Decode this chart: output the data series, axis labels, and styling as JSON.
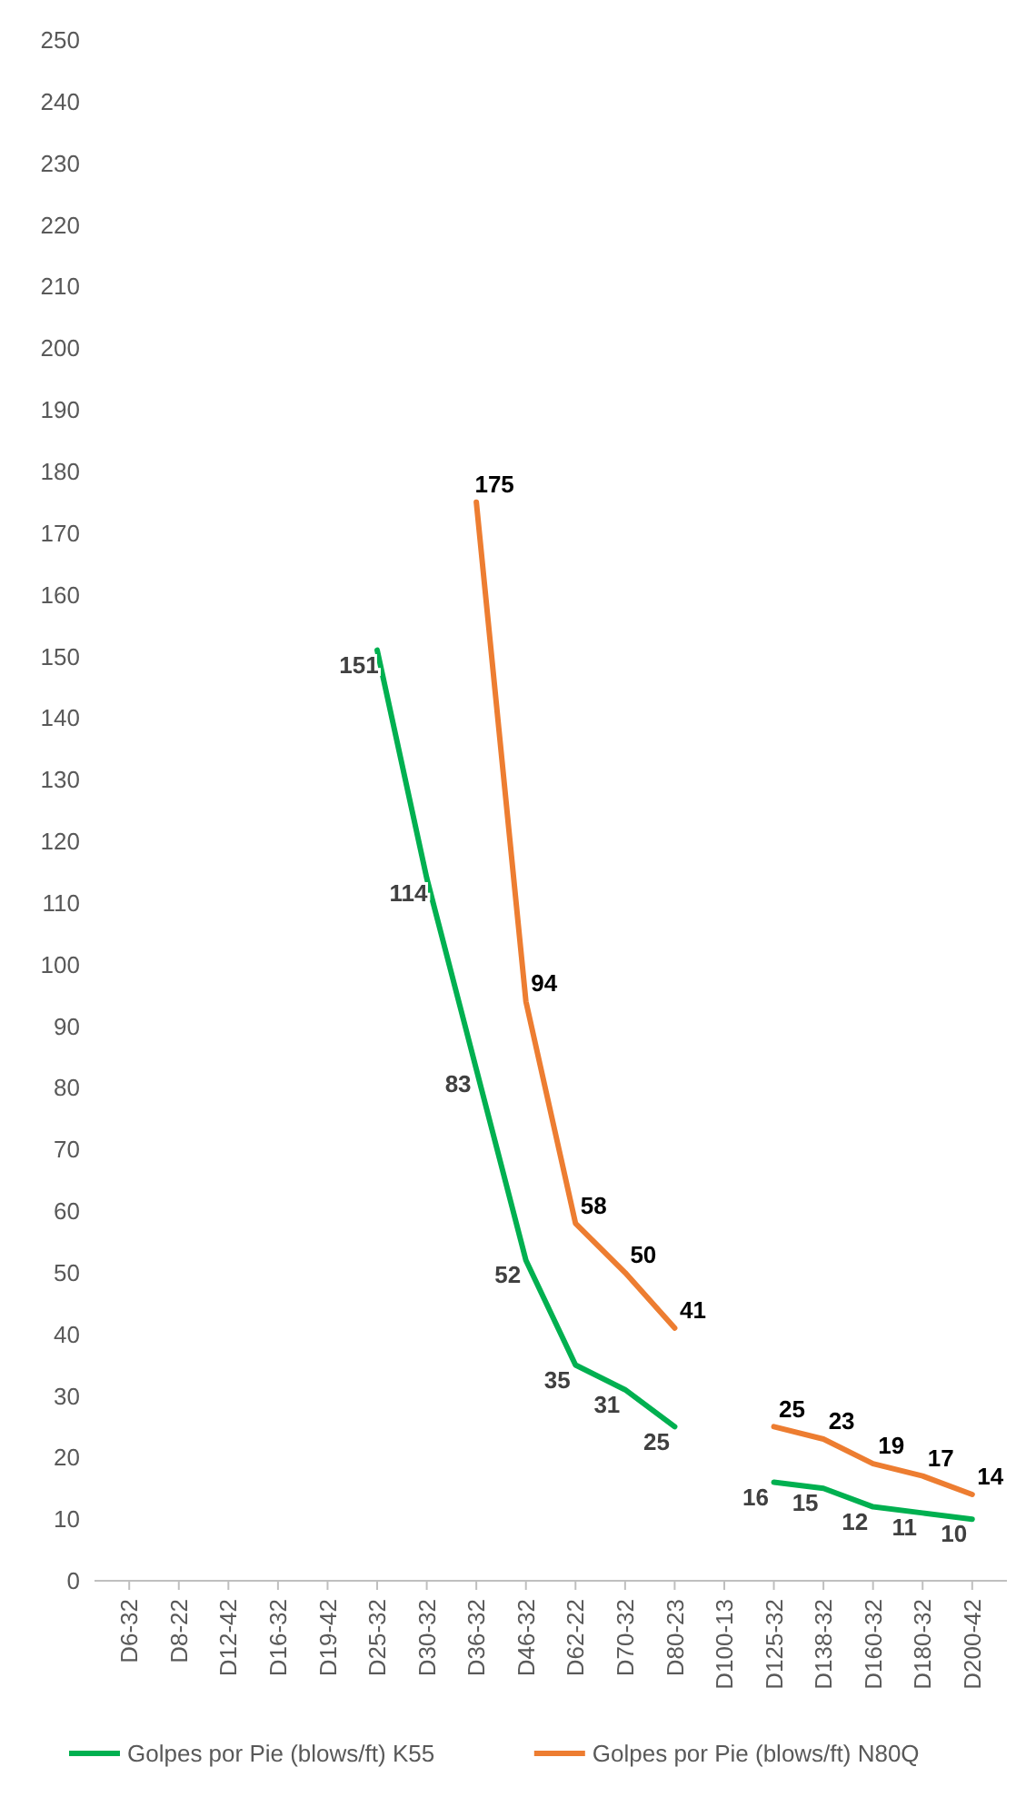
{
  "chart_data": {
    "type": "line",
    "categories": [
      "D6-32",
      "D8-22",
      "D12-42",
      "D16-32",
      "D19-42",
      "D25-32",
      "D30-32",
      "D36-32",
      "D46-32",
      "D62-22",
      "D70-32",
      "D80-23",
      "D100-13",
      "D125-32",
      "D138-32",
      "D160-32",
      "D180-32",
      "D200-42"
    ],
    "series": [
      {
        "name": "Golpes por Pie (blows/ft) K55",
        "color": "#00b050",
        "values": [
          null,
          null,
          null,
          null,
          null,
          151,
          114,
          83,
          52,
          35,
          31,
          25,
          null,
          16,
          15,
          12,
          11,
          10
        ]
      },
      {
        "name": "Golpes por Pie (blows/ft) N80Q",
        "color": "#ed7d31",
        "values": [
          null,
          null,
          null,
          null,
          null,
          null,
          null,
          175,
          94,
          58,
          50,
          41,
          null,
          25,
          23,
          19,
          17,
          14
        ]
      }
    ],
    "ylim": [
      0,
      250
    ],
    "yticks": [
      0,
      10,
      20,
      30,
      40,
      50,
      60,
      70,
      80,
      90,
      100,
      110,
      120,
      130,
      140,
      150,
      160,
      170,
      180,
      190,
      200,
      210,
      220,
      230,
      240,
      250
    ],
    "grid": false,
    "legend": "bottom",
    "data_labels": true,
    "marker": "none"
  }
}
